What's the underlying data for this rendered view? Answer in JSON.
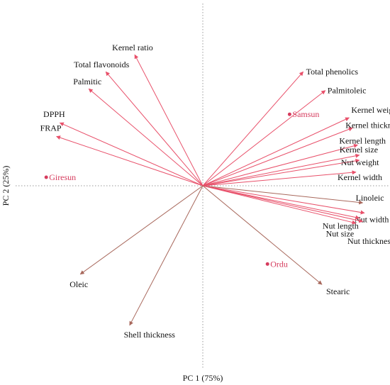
{
  "chart_data": {
    "type": "scatter",
    "subtype": "pca-biplot",
    "title": "",
    "xlabel": "PC 1  (75%)",
    "ylabel": "PC 2  (25%)",
    "xlim": [
      -1,
      1
    ],
    "ylim": [
      -1,
      1
    ],
    "grid": false,
    "reference_lines": "dotted lines at x = 0 and y = 0",
    "colors": {
      "red_arrow": "#e8506a",
      "brown_arrow": "#a8685c",
      "observation": "#d63c5e",
      "axis_line": "#999999"
    },
    "loadings": [
      {
        "name": "Kernel ratio",
        "x": -0.4,
        "y": 0.77,
        "color": "red_arrow"
      },
      {
        "name": "Total flavonoids",
        "x": -0.57,
        "y": 0.67,
        "color": "red_arrow"
      },
      {
        "name": "Palmitic",
        "x": -0.67,
        "y": 0.57,
        "color": "red_arrow"
      },
      {
        "name": "DPPH",
        "x": -0.84,
        "y": 0.37,
        "color": "red_arrow"
      },
      {
        "name": "FRAP",
        "x": -0.86,
        "y": 0.29,
        "color": "red_arrow"
      },
      {
        "name": "Total phenolics",
        "x": 0.59,
        "y": 0.67,
        "color": "red_arrow"
      },
      {
        "name": "Palmitoleic",
        "x": 0.72,
        "y": 0.56,
        "color": "red_arrow"
      },
      {
        "name": "Kernel weight",
        "x": 0.86,
        "y": 0.4,
        "color": "red_arrow"
      },
      {
        "name": "Kernel thickness",
        "x": 0.88,
        "y": 0.34,
        "color": "red_arrow"
      },
      {
        "name": "Kernel length",
        "x": 0.91,
        "y": 0.24,
        "color": "red_arrow"
      },
      {
        "name": "Kernel size",
        "x": 0.92,
        "y": 0.18,
        "color": "red_arrow"
      },
      {
        "name": "Nut weight",
        "x": 0.92,
        "y": 0.15,
        "color": "red_arrow"
      },
      {
        "name": "Kernel width",
        "x": 0.9,
        "y": 0.08,
        "color": "red_arrow"
      },
      {
        "name": "Linoleic",
        "x": 0.94,
        "y": -0.1,
        "color": "brown_arrow"
      },
      {
        "name": "Nut width",
        "x": 0.95,
        "y": -0.16,
        "color": "red_arrow"
      },
      {
        "name": "Nut length",
        "x": 0.92,
        "y": -0.19,
        "color": "red_arrow"
      },
      {
        "name": "Nut size",
        "x": 0.94,
        "y": -0.21,
        "color": "red_arrow"
      },
      {
        "name": "Nut thickness",
        "x": 0.9,
        "y": -0.22,
        "color": "red_arrow"
      },
      {
        "name": "Stearic",
        "x": 0.7,
        "y": -0.58,
        "color": "brown_arrow"
      },
      {
        "name": "Oleic",
        "x": -0.72,
        "y": -0.52,
        "color": "brown_arrow"
      },
      {
        "name": "Shell thickness",
        "x": -0.43,
        "y": -0.82,
        "color": "brown_arrow"
      }
    ],
    "observations": [
      {
        "name": "Samsun",
        "x": 0.51,
        "y": 0.42
      },
      {
        "name": "Giresun",
        "x": -0.92,
        "y": 0.05
      },
      {
        "name": "Ordu",
        "x": 0.38,
        "y": -0.46
      }
    ]
  }
}
